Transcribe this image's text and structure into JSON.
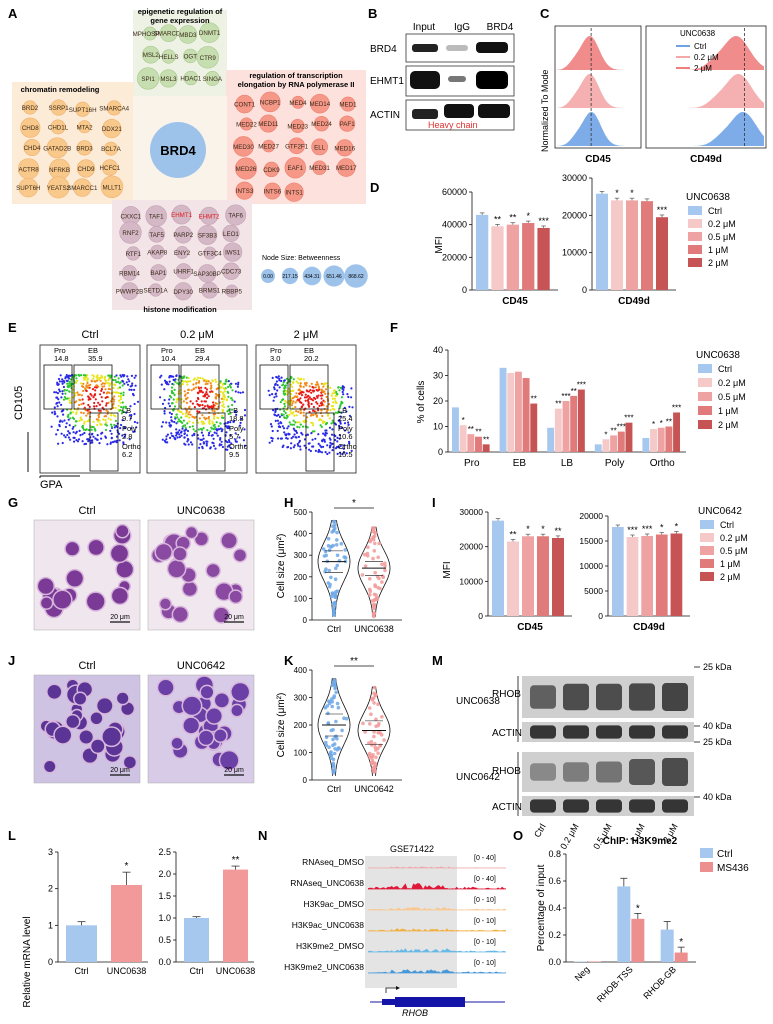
{
  "panel_letters": [
    "A",
    "B",
    "C",
    "D",
    "E",
    "F",
    "G",
    "H",
    "I",
    "J",
    "K",
    "M",
    "L",
    "N",
    "O"
  ],
  "panelA": {
    "clusters": [
      {
        "title": "epigenetic regulation of gene expression",
        "title_lines": [
          "epigenetic regulation of",
          "gene expression"
        ],
        "nodes": [
          "MPHOSPH8",
          "SMARCD1",
          "MBD3",
          "DNMT1",
          "MSL2",
          "HELLS",
          "OGT",
          "CTR9",
          "SPI1",
          "MSL3",
          "HDAC1",
          "SINGA"
        ]
      },
      {
        "title": "chromatin remodeling",
        "title_lines": [
          "chromatin remodeling"
        ],
        "nodes": [
          "BRD2",
          "SSRP1",
          "SUPT16H",
          "SMARCA4",
          "CHD8",
          "CHD1L",
          "MTA2",
          "DDX21",
          "CHD4",
          "GATAD2B",
          "BRD3",
          "BCL7A",
          "ACTR8",
          "NFRKB",
          "CHD9",
          "HCFC1",
          "SUPT6H",
          "YEATS2",
          "SMARCC1",
          "MLLT1"
        ]
      },
      {
        "title": "regulation of transcription elongation by RNA polymerase II",
        "title_lines": [
          "regulation of transcription",
          "elongation by RNA polymerase II"
        ],
        "nodes": [
          "CONT1",
          "NCBP1",
          "MED4",
          "MED14",
          "MED1",
          "MED22",
          "MED11",
          "MED23",
          "MED24",
          "PAF1",
          "MED30",
          "MED27",
          "GTF2F1",
          "ELL",
          "MED16",
          "MED26",
          "CDK9",
          "EAF1",
          "MED31",
          "MED17",
          "INTS3",
          "INTS6",
          "INTS1"
        ]
      },
      {
        "title": "histone modification",
        "title_lines": [
          "histone modification"
        ],
        "nodes": [
          "CXXC1",
          "TAF1",
          "EHMT1",
          "EHMT2",
          "TAF6",
          "RNF2",
          "TAF5",
          "PARP2",
          "SF3B3",
          "LEO1",
          "RTF1",
          "AKAP8",
          "ENY2",
          "GTF3C4",
          "IWS1",
          "RBM14",
          "BAP1",
          "UHRF1",
          "SAP30BP",
          "CDC73",
          "PWWP2B",
          "SETD1A",
          "DPY30",
          "BRMS1",
          "RBBP5"
        ]
      }
    ],
    "highlighted": [
      "EHMT1",
      "EHMT2"
    ],
    "hub": "BRD4",
    "legend_title": "Node Size: Betweenness",
    "legend_values": [
      "0.00",
      "217.15",
      "434.31",
      "651.46",
      "868.62"
    ]
  },
  "panelB": {
    "columns": [
      "Input",
      "IgG",
      "BRD4"
    ],
    "rows": [
      "BRD4",
      "EHMT1",
      "ACTIN"
    ],
    "annotation": "Heavy chain"
  },
  "panelC": {
    "legend_title": "UNC0638",
    "legend_items": [
      "Ctrl",
      "0.2 μM",
      "2 μM"
    ],
    "ylabel": "Normalized To Mode",
    "xlabels": [
      "CD45",
      "CD49d"
    ]
  },
  "legend_doses": [
    "Ctrl",
    "0.2 μM",
    "0.5 μM",
    "1 μM",
    "2 μM"
  ],
  "dose_colors": [
    "#a7c8ee",
    "#f6c9c9",
    "#efa2a2",
    "#e17a7a",
    "#c75454"
  ],
  "panelD": {
    "legend_title": "UNC0638",
    "ylabel": "MFI",
    "chart_data": [
      {
        "type": "bar",
        "xlabel": "CD45",
        "ylim": [
          0,
          60000
        ],
        "yticks": [
          "0",
          "20000",
          "40000",
          "60000"
        ],
        "categories": [
          "Ctrl",
          "0.2 μM",
          "0.5 μM",
          "1 μM",
          "2 μM"
        ],
        "values": [
          46000,
          39000,
          40000,
          41000,
          38000
        ],
        "significance": [
          "",
          "**",
          "**",
          "*",
          "***"
        ]
      },
      {
        "type": "bar",
        "xlabel": "CD49d",
        "ylim": [
          0,
          30000
        ],
        "yticks": [
          "0",
          "10000",
          "20000",
          "30000"
        ],
        "categories": [
          "Ctrl",
          "0.2 μM",
          "0.5 μM",
          "1 μM",
          "2 μM"
        ],
        "values": [
          25800,
          24000,
          24000,
          23800,
          19500
        ],
        "significance": [
          "",
          "*",
          "*",
          "",
          "***"
        ]
      }
    ]
  },
  "panelE": {
    "titles": [
      "Ctrl",
      "0.2 μM",
      "2 μM"
    ],
    "ylabel": "CD105",
    "xlabel": "GPA",
    "gates": [
      {
        "Pro": "14.8",
        "EB": "35.9",
        "LB": "9.7",
        "Poly": "2.8",
        "Ortho": "6.2"
      },
      {
        "Pro": "10.4",
        "EB": "29.4",
        "LB": "18.8",
        "Poly": "5.7",
        "Ortho": "9.5"
      },
      {
        "Pro": "3.0",
        "EB": "20.2",
        "LB": "25.4",
        "Poly": "10.6",
        "Ortho": "15.5"
      }
    ]
  },
  "panelF": {
    "legend_title": "UNC0638",
    "ylabel": "% of  cells",
    "chart_data": {
      "type": "bar",
      "ylim": [
        0,
        40
      ],
      "yticks": [
        "0",
        "10",
        "20",
        "30",
        "40"
      ],
      "categories": [
        "Pro",
        "EB",
        "LB",
        "Poly",
        "Ortho"
      ],
      "series": [
        {
          "name": "Ctrl",
          "values": [
            17.5,
            33,
            9.5,
            3,
            5.5
          ]
        },
        {
          "name": "0.2 μM",
          "values": [
            10.5,
            31,
            17,
            5,
            9
          ]
        },
        {
          "name": "0.5 μM",
          "values": [
            7,
            31.5,
            20,
            6.5,
            9.5
          ]
        },
        {
          "name": "1 μM",
          "values": [
            6,
            29,
            22,
            8,
            10
          ]
        },
        {
          "name": "2 μM",
          "values": [
            3,
            19,
            24.5,
            11.5,
            15.5
          ]
        }
      ],
      "significance": [
        [
          "",
          "*",
          "**",
          "**",
          "**"
        ],
        [
          "",
          "",
          "",
          "",
          "**"
        ],
        [
          "",
          "**",
          "***",
          "**",
          "***"
        ],
        [
          "",
          "*",
          "**",
          "***",
          "***"
        ],
        [
          "",
          "*",
          "*",
          "**",
          "***"
        ]
      ]
    }
  },
  "panelG": {
    "titles": [
      "Ctrl",
      "UNC0638"
    ],
    "scalebar": "20 μm"
  },
  "panelH": {
    "ylabel": "Cell size (μm²)",
    "chart_data": {
      "type": "violin",
      "categories": [
        "Ctrl",
        "UNC0638"
      ],
      "ylim": [
        0,
        500
      ],
      "yticks": [
        "0",
        "100",
        "200",
        "300",
        "400",
        "500"
      ],
      "medians": [
        270,
        240
      ],
      "quartiles": [
        [
          220,
          320
        ],
        [
          205,
          270
        ]
      ],
      "significance": "*"
    }
  },
  "panelI": {
    "legend_title": "UNC0642",
    "ylabel": "MFI",
    "chart_data": [
      {
        "type": "bar",
        "xlabel": "CD45",
        "ylim": [
          0,
          30000
        ],
        "yticks": [
          "0",
          "10000",
          "20000",
          "30000"
        ],
        "categories": [
          "Ctrl",
          "0.2 μM",
          "0.5 μM",
          "1 μM",
          "2 μM"
        ],
        "values": [
          27500,
          21500,
          23000,
          23000,
          22500
        ],
        "significance": [
          "",
          "**",
          "*",
          "*",
          "**"
        ]
      },
      {
        "type": "bar",
        "xlabel": "CD49d",
        "ylim": [
          0,
          20000
        ],
        "yticks": [
          "0",
          "5000",
          "10000",
          "15000",
          "20000"
        ],
        "categories": [
          "Ctrl",
          "0.2 μM",
          "0.5 μM",
          "1 μM",
          "2 μM"
        ],
        "values": [
          17800,
          15800,
          16000,
          16300,
          16500
        ],
        "significance": [
          "",
          "***",
          "***",
          "*",
          "*"
        ]
      }
    ]
  },
  "panelJ": {
    "titles": [
      "Ctrl",
      "UNC0642"
    ],
    "scalebar": "20 μm"
  },
  "panelK": {
    "ylabel": "Cell size (μm²)",
    "chart_data": {
      "type": "violin",
      "categories": [
        "Ctrl",
        "UNC0642"
      ],
      "ylim": [
        0,
        400
      ],
      "yticks": [
        "0",
        "100",
        "200",
        "300",
        "400"
      ],
      "medians": [
        200,
        180
      ],
      "quartiles": [
        [
          160,
          240
        ],
        [
          130,
          215
        ]
      ],
      "significance": "**"
    }
  },
  "panelM": {
    "groups": [
      "UNC0638",
      "UNC0642"
    ],
    "bands": [
      "RHOB",
      "ACTIN"
    ],
    "markers": [
      "25 kDa",
      "40 kDa"
    ],
    "lanes": [
      "Ctrl",
      "0.2 μM",
      "0.5 μM",
      "1 μM",
      "2 μM"
    ]
  },
  "panelL": {
    "ylabel": "Relative mRNA level",
    "chart_data": [
      {
        "type": "bar",
        "categories": [
          "Ctrl",
          "UNC0638"
        ],
        "values": [
          1.0,
          2.1
        ],
        "errors": [
          0.1,
          0.35
        ],
        "ylim": [
          0,
          3
        ],
        "yticks": [
          "0",
          "1",
          "2",
          "3"
        ],
        "significance": [
          "",
          "*"
        ]
      },
      {
        "type": "bar",
        "categories": [
          "Ctrl",
          "UNC0638"
        ],
        "values": [
          1.0,
          2.1
        ],
        "errors": [
          0.03,
          0.08
        ],
        "ylim": [
          0,
          2.5
        ],
        "yticks": [
          "0.0",
          "0.5",
          "1.0",
          "1.5",
          "2.0",
          "2.5"
        ],
        "significance": [
          "",
          "**"
        ]
      }
    ]
  },
  "panelN": {
    "header": "GSE71422",
    "tracks": [
      {
        "name": "RNAseq_DMSO",
        "range": "[0 - 40]"
      },
      {
        "name": "RNAseq_UNC0638",
        "range": "[0 - 40]"
      },
      {
        "name": "H3K9ac_DMSO",
        "range": "[0 - 10]"
      },
      {
        "name": "H3K9ac_UNC0638",
        "range": "[0 - 10]"
      },
      {
        "name": "H3K9me2_DMSO",
        "range": "[0 - 10]"
      },
      {
        "name": "H3K9me2_UNC0638",
        "range": "[0 - 10]"
      }
    ],
    "gene": "RHOB"
  },
  "panelO": {
    "title": "ChIP: H3K9me2",
    "ylabel": "Percentage of input",
    "legend": [
      "Ctrl",
      "MS436"
    ],
    "colors": [
      "#a7c8ee",
      "#ee8f8f"
    ],
    "chart_data": {
      "type": "bar",
      "categories": [
        "Neg",
        "RHOB-TSS",
        "RHOB-GB"
      ],
      "series": [
        {
          "name": "Ctrl",
          "values": [
            0.0,
            0.56,
            0.24
          ]
        },
        {
          "name": "MS436",
          "values": [
            0.0,
            0.32,
            0.07
          ]
        }
      ],
      "ylim": [
        0,
        0.8
      ],
      "yticks": [
        "0.0",
        "0.2",
        "0.4",
        "0.6",
        "0.8"
      ],
      "significance": [
        "",
        "*",
        "*"
      ]
    }
  }
}
